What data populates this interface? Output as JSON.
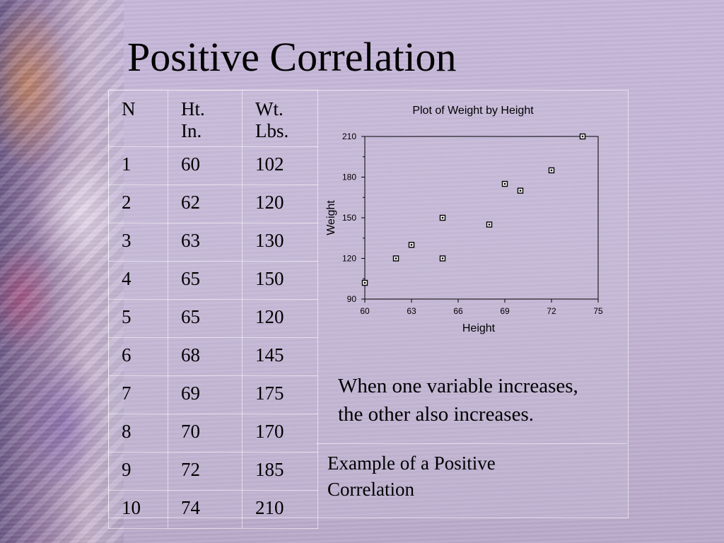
{
  "slide": {
    "title": "Positive Correlation",
    "caption_line1": "When one variable increases,",
    "caption_line2": "the other also increases.",
    "note_line1": "Example of a Positive",
    "note_line2": "Correlation"
  },
  "table": {
    "headers": [
      {
        "line1": "N",
        "line2": ""
      },
      {
        "line1": "Ht.",
        "line2": "In."
      },
      {
        "line1": "Wt.",
        "line2": "Lbs."
      }
    ],
    "rows": [
      [
        "1",
        "60",
        "102"
      ],
      [
        "2",
        "62",
        "120"
      ],
      [
        "3",
        "63",
        "130"
      ],
      [
        "4",
        "65",
        "150"
      ],
      [
        "5",
        "65",
        "120"
      ],
      [
        "6",
        "68",
        "145"
      ],
      [
        "7",
        "69",
        "175"
      ],
      [
        "8",
        "70",
        "170"
      ],
      [
        "9",
        "72",
        "185"
      ],
      [
        "10",
        "74",
        "210"
      ]
    ]
  },
  "chart_data": {
    "type": "scatter",
    "title": "Plot of Weight by Height",
    "xlabel": "Height",
    "ylabel": "Weight",
    "xlim": [
      60,
      75
    ],
    "ylim": [
      90,
      210
    ],
    "xticks": [
      60,
      63,
      66,
      69,
      72,
      75
    ],
    "yticks": [
      90,
      120,
      150,
      180,
      210
    ],
    "grid": false,
    "points": [
      {
        "x": 60,
        "y": 102
      },
      {
        "x": 62,
        "y": 120
      },
      {
        "x": 63,
        "y": 130
      },
      {
        "x": 65,
        "y": 150
      },
      {
        "x": 65,
        "y": 120
      },
      {
        "x": 68,
        "y": 145
      },
      {
        "x": 69,
        "y": 175
      },
      {
        "x": 70,
        "y": 170
      },
      {
        "x": 72,
        "y": 185
      },
      {
        "x": 74,
        "y": 210
      }
    ]
  }
}
